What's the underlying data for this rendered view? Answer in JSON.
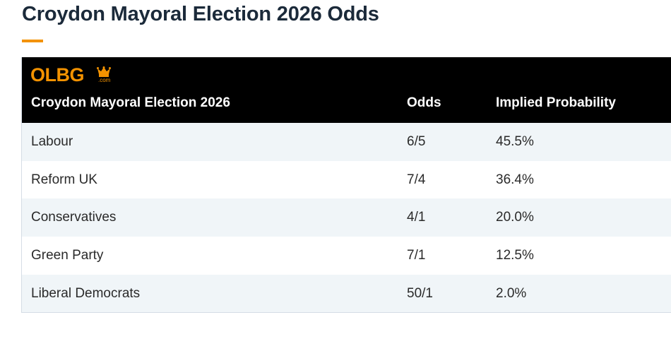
{
  "page": {
    "title": "Croydon Mayoral Election 2026 Odds",
    "accent_color": "#f39200",
    "title_color": "#1b2a3a"
  },
  "logo": {
    "text": "OLBG",
    "suffix": ".com",
    "icon": "crown-icon"
  },
  "table": {
    "header_bg": "#000000",
    "headers": [
      "Croydon Mayoral Election 2026",
      "Odds",
      "Implied Probability"
    ],
    "rows": [
      {
        "candidate": "Labour",
        "odds": "6/5",
        "probability": "45.5%"
      },
      {
        "candidate": "Reform UK",
        "odds": "7/4",
        "probability": "36.4%"
      },
      {
        "candidate": "Conservatives",
        "odds": "4/1",
        "probability": "20.0%"
      },
      {
        "candidate": "Green Party",
        "odds": "7/1",
        "probability": "12.5%"
      },
      {
        "candidate": "Liberal Democrats",
        "odds": "50/1",
        "probability": "2.0%"
      }
    ]
  }
}
